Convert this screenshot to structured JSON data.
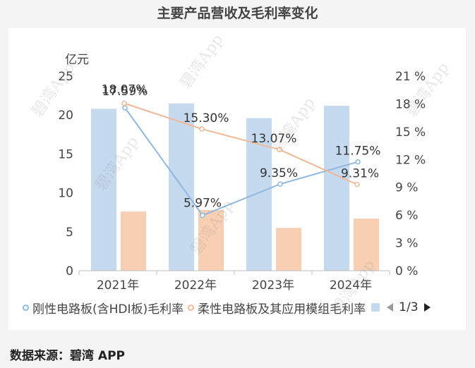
{
  "page": {
    "title": "主要产品营收及毛利率变化",
    "source": "数据来源：碧湾 APP",
    "watermark": "碧湾App"
  },
  "legend": {
    "items": [
      {
        "label": "刚性电路板(含HDI板)毛利率",
        "color": "#8fb8de",
        "icon": "circle-marker"
      },
      {
        "label": "柔性电路板及其应用模组毛利率",
        "color": "#f0b896",
        "icon": "circle-marker"
      }
    ],
    "page": "1/3"
  },
  "chart_data": {
    "type": "bar",
    "categories": [
      "2021年",
      "2022年",
      "2023年",
      "2024年"
    ],
    "y_left": {
      "unit": "亿元",
      "ticks": [
        "0",
        "5",
        "10",
        "15",
        "20",
        "25"
      ],
      "range": [
        0,
        25
      ]
    },
    "y_right": {
      "ticks": [
        "0 %",
        "3 %",
        "6 %",
        "9 %",
        "12 %",
        "15 %",
        "18 %",
        "21 %"
      ],
      "range": [
        0,
        21
      ]
    },
    "bar_series": [
      {
        "values": [
          20.8,
          21.5,
          19.6,
          21.2
        ],
        "color": "#c5d9ef"
      },
      {
        "values": [
          7.6,
          7.8,
          5.5,
          6.7
        ],
        "color": "#f8cfb3"
      }
    ],
    "line_series": [
      {
        "name": "刚性电路板(含HDI板)毛利率",
        "values": [
          17.59,
          5.97,
          9.35,
          11.75
        ],
        "labels": [
          "17.59%",
          "5.97%",
          "9.35%",
          "11.75%"
        ],
        "color": "#8fb8de",
        "axis": "right"
      },
      {
        "name": "柔性电路板及其应用模组毛利率",
        "values": [
          18.07,
          15.3,
          13.07,
          9.31
        ],
        "labels": [
          "18.07%",
          "15.30%",
          "13.07%",
          "9.31%"
        ],
        "color": "#f0b896",
        "axis": "right"
      }
    ],
    "grid": false
  }
}
